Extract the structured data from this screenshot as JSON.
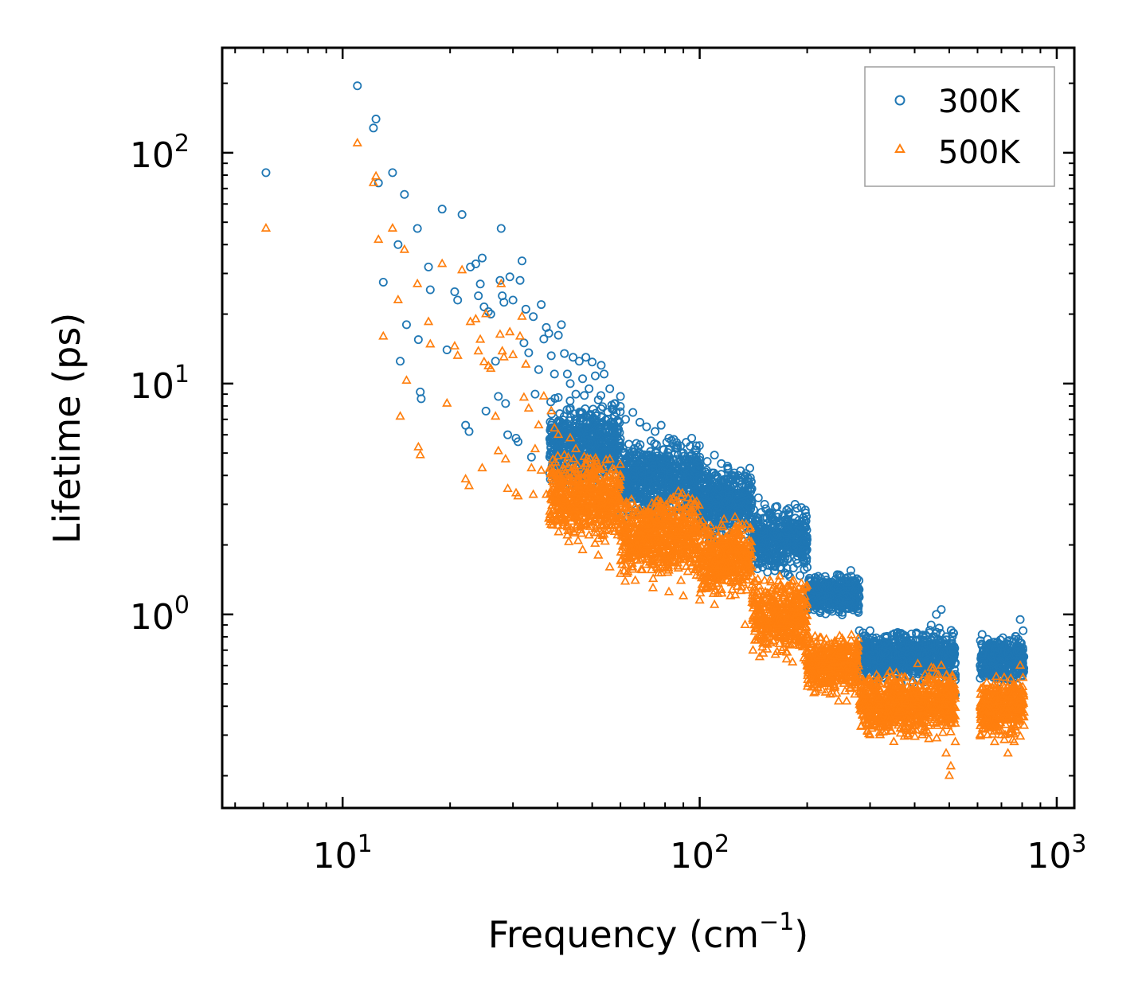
{
  "chart_data": {
    "type": "scatter",
    "xscale": "log",
    "yscale": "log",
    "xlim": [
      4.6,
      1120
    ],
    "ylim": [
      0.145,
      285
    ],
    "xlabel": "Frequency (cm",
    "xlabel_sup": "−1",
    "xlabel_end": ")",
    "ylabel": "Lifetime (ps)",
    "legend_position": "top-right",
    "x_ticks": [
      {
        "value": 10,
        "base": "10",
        "exp": "1"
      },
      {
        "value": 100,
        "base": "10",
        "exp": "2"
      },
      {
        "value": 1000,
        "base": "10",
        "exp": "3"
      }
    ],
    "y_ticks": [
      {
        "value": 1,
        "base": "10",
        "exp": "0"
      },
      {
        "value": 10,
        "base": "10",
        "exp": "1"
      },
      {
        "value": 100,
        "base": "10",
        "exp": "2"
      }
    ],
    "series": [
      {
        "name": "300K",
        "marker": "circle",
        "color": "#1f77b4",
        "points": [
          [
            6.1,
            82
          ],
          [
            11.0,
            195
          ],
          [
            12.2,
            128
          ],
          [
            12.4,
            140
          ],
          [
            12.6,
            74
          ],
          [
            13.0,
            27.5
          ],
          [
            13.8,
            82
          ],
          [
            14.3,
            40
          ],
          [
            14.5,
            12.5
          ],
          [
            14.9,
            66
          ],
          [
            15.1,
            18
          ],
          [
            16.2,
            47
          ],
          [
            16.3,
            15.5
          ],
          [
            16.5,
            9.2
          ],
          [
            16.6,
            8.6
          ],
          [
            17.4,
            32
          ],
          [
            17.6,
            25.5
          ],
          [
            19.0,
            57
          ],
          [
            19.6,
            14
          ],
          [
            20.6,
            25
          ],
          [
            21.0,
            23
          ],
          [
            21.6,
            54
          ],
          [
            22.1,
            6.6
          ],
          [
            22.6,
            6.2
          ],
          [
            22.8,
            32
          ],
          [
            23.6,
            33
          ],
          [
            24.0,
            24
          ],
          [
            24.3,
            27
          ],
          [
            24.6,
            35
          ],
          [
            24.9,
            21.5
          ],
          [
            25.2,
            7.6
          ],
          [
            25.6,
            20.5
          ],
          [
            26.0,
            20
          ],
          [
            26.8,
            12.5
          ],
          [
            27.3,
            8.8
          ],
          [
            27.6,
            28
          ],
          [
            27.8,
            47
          ],
          [
            28.0,
            24
          ],
          [
            28.3,
            22.5
          ],
          [
            28.6,
            8.2
          ],
          [
            29.0,
            6.0
          ],
          [
            29.4,
            29
          ],
          [
            30.0,
            23
          ],
          [
            30.6,
            5.8
          ],
          [
            31.0,
            5.6
          ],
          [
            31.4,
            28
          ],
          [
            31.8,
            34
          ],
          [
            32.2,
            15
          ],
          [
            32.6,
            21
          ],
          [
            33.2,
            13.6
          ],
          [
            33.8,
            4.8
          ],
          [
            34.2,
            19.5
          ],
          [
            34.6,
            9
          ],
          [
            35.4,
            11.5
          ],
          [
            36.0,
            22
          ],
          [
            36.6,
            15.6
          ],
          [
            37.2,
            17.5
          ],
          [
            37.8,
            16.5
          ],
          [
            38.4,
            13.2
          ],
          [
            39.2,
            11
          ],
          [
            40.2,
            16.2
          ],
          [
            41.0,
            18
          ],
          [
            41.8,
            13.5
          ],
          [
            42.6,
            11
          ],
          [
            43.4,
            10
          ],
          [
            44.2,
            13
          ],
          [
            45.0,
            9
          ],
          [
            46.0,
            12.5
          ],
          [
            47.0,
            10.5
          ],
          [
            48.0,
            13
          ],
          [
            49.0,
            9.5
          ],
          [
            50.0,
            12.4
          ],
          [
            51.0,
            10.8
          ],
          [
            52.0,
            8.5
          ],
          [
            53.0,
            12
          ],
          [
            54.0,
            11
          ],
          [
            56.0,
            9.5
          ],
          [
            58.0,
            8.2
          ],
          [
            60.0,
            8.8
          ],
          [
            62.0,
            7.0
          ],
          [
            65.0,
            7.5
          ],
          [
            68.0,
            6.8
          ],
          [
            71.0,
            6.5
          ],
          [
            75.0,
            6.2
          ],
          [
            78.0,
            6.6
          ],
          [
            82.0,
            5.8
          ],
          [
            86.0,
            5.3
          ],
          [
            90.0,
            5.0
          ],
          [
            95.0,
            5.8
          ],
          [
            100.0,
            4.8
          ],
          [
            105.0,
            4.6
          ],
          [
            110.0,
            4.9
          ],
          [
            115.0,
            4.5
          ],
          [
            120.0,
            4.3
          ],
          [
            125.0,
            4.1
          ],
          [
            130.0,
            3.8
          ],
          [
            135.0,
            3.6
          ],
          [
            140.0,
            3.5
          ],
          [
            146.0,
            3.2
          ],
          [
            152.0,
            3.0
          ],
          [
            158.0,
            2.7
          ],
          [
            164.0,
            2.5
          ],
          [
            170.0,
            2.4
          ],
          [
            176.0,
            2.3
          ],
          [
            182.0,
            2.2
          ],
          [
            188.0,
            2.1
          ],
          [
            196.0,
            1.7
          ],
          [
            200.0,
            1.6
          ],
          [
            210.0,
            1.4
          ],
          [
            220.0,
            1.3
          ],
          [
            232.0,
            1.2
          ],
          [
            245.0,
            1.15
          ],
          [
            258.0,
            1.2
          ],
          [
            265.0,
            1.55
          ],
          [
            272.0,
            1.4
          ],
          [
            280.0,
            0.85
          ],
          [
            290.0,
            0.72
          ],
          [
            300.0,
            0.85
          ],
          [
            315.0,
            0.75
          ],
          [
            330.0,
            0.8
          ],
          [
            350.0,
            0.78
          ],
          [
            370.0,
            0.72
          ],
          [
            390.0,
            0.66
          ],
          [
            410.0,
            0.62
          ],
          [
            430.0,
            0.75
          ],
          [
            445.0,
            0.9
          ],
          [
            460.0,
            1.0
          ],
          [
            475.0,
            1.05
          ],
          [
            490.0,
            0.8
          ],
          [
            505.0,
            0.6
          ],
          [
            520.0,
            0.45
          ],
          [
            610.0,
            0.6
          ],
          [
            640.0,
            0.78
          ],
          [
            670.0,
            0.72
          ],
          [
            700.0,
            0.7
          ],
          [
            730.0,
            0.68
          ],
          [
            760.0,
            0.78
          ],
          [
            790.0,
            0.95
          ],
          [
            805.0,
            0.85
          ]
        ],
        "dense_bands": [
          {
            "x_start": 38,
            "x_end": 60,
            "y_low": 3.2,
            "y_high": 9.5
          },
          {
            "x_start": 60,
            "x_end": 100,
            "y_low": 2.4,
            "y_high": 6.2
          },
          {
            "x_start": 100,
            "x_end": 140,
            "y_low": 2.0,
            "y_high": 4.8
          },
          {
            "x_start": 140,
            "x_end": 200,
            "y_low": 1.4,
            "y_high": 3.2
          },
          {
            "x_start": 200,
            "x_end": 280,
            "y_low": 0.95,
            "y_high": 1.55
          },
          {
            "x_start": 280,
            "x_end": 520,
            "y_low": 0.48,
            "y_high": 0.9
          },
          {
            "x_start": 610,
            "x_end": 810,
            "y_low": 0.48,
            "y_high": 0.85
          }
        ]
      },
      {
        "name": "500K",
        "marker": "triangle",
        "color": "#ff7f0e",
        "points": [
          [
            6.1,
            47
          ],
          [
            11.0,
            110
          ],
          [
            12.2,
            74
          ],
          [
            12.4,
            79
          ],
          [
            12.6,
            42
          ],
          [
            13.0,
            16
          ],
          [
            13.8,
            47
          ],
          [
            14.3,
            23
          ],
          [
            14.5,
            7.2
          ],
          [
            14.9,
            38
          ],
          [
            15.1,
            10.3
          ],
          [
            16.2,
            27
          ],
          [
            16.3,
            5.3
          ],
          [
            16.5,
            4.9
          ],
          [
            17.4,
            18.5
          ],
          [
            17.6,
            14.8
          ],
          [
            19.0,
            33
          ],
          [
            19.6,
            8.2
          ],
          [
            20.6,
            14.5
          ],
          [
            21.0,
            13.2
          ],
          [
            21.6,
            31
          ],
          [
            22.1,
            3.85
          ],
          [
            22.6,
            3.6
          ],
          [
            22.8,
            18.5
          ],
          [
            23.6,
            19
          ],
          [
            24.0,
            13.8
          ],
          [
            24.3,
            15.5
          ],
          [
            24.6,
            4.3
          ],
          [
            24.9,
            12.4
          ],
          [
            25.2,
            20
          ],
          [
            25.6,
            11.9
          ],
          [
            26.0,
            11.6
          ],
          [
            26.8,
            7.2
          ],
          [
            27.3,
            5.1
          ],
          [
            27.6,
            16.3
          ],
          [
            27.8,
            27
          ],
          [
            28.0,
            13.8
          ],
          [
            28.3,
            13
          ],
          [
            28.6,
            4.7
          ],
          [
            29.0,
            3.5
          ],
          [
            29.4,
            16.7
          ],
          [
            30.0,
            13.3
          ],
          [
            30.6,
            3.35
          ],
          [
            31.0,
            3.25
          ],
          [
            31.4,
            16
          ],
          [
            31.8,
            19.5
          ],
          [
            32.2,
            8.7
          ],
          [
            32.6,
            12.1
          ],
          [
            33.2,
            7.8
          ],
          [
            33.8,
            4.3
          ],
          [
            34.2,
            3.3
          ],
          [
            34.6,
            5.2
          ],
          [
            35.4,
            6.6
          ],
          [
            36.0,
            4.2
          ],
          [
            36.6,
            8.8
          ],
          [
            37.2,
            3.3
          ],
          [
            37.8,
            2.6
          ],
          [
            38.4,
            7.6
          ],
          [
            39.2,
            6.4
          ],
          [
            40.2,
            6.0
          ],
          [
            41.0,
            2.6
          ],
          [
            41.8,
            4.9
          ],
          [
            42.6,
            2.2
          ],
          [
            43.4,
            5.8
          ],
          [
            44.2,
            2.9
          ],
          [
            45.0,
            5.2
          ],
          [
            46.0,
            2.5
          ],
          [
            47.0,
            1.9
          ],
          [
            48.0,
            4.5
          ],
          [
            49.0,
            2.2
          ],
          [
            50.0,
            4.0
          ],
          [
            52.0,
            1.8
          ],
          [
            54.0,
            3.6
          ],
          [
            56.0,
            1.6
          ],
          [
            58.0,
            3.3
          ],
          [
            60.0,
            1.5
          ],
          [
            63.0,
            3.0
          ],
          [
            66.0,
            1.4
          ],
          [
            70.0,
            2.8
          ],
          [
            74.0,
            1.3
          ],
          [
            78.0,
            2.6
          ],
          [
            82.0,
            1.25
          ],
          [
            86.0,
            2.4
          ],
          [
            90.0,
            1.2
          ],
          [
            95.0,
            2.3
          ],
          [
            100.0,
            1.15
          ],
          [
            105.0,
            2.2
          ],
          [
            110.0,
            1.1
          ],
          [
            116.0,
            2.1
          ],
          [
            122.0,
            1.2
          ],
          [
            128.0,
            1.9
          ],
          [
            134.0,
            0.9
          ],
          [
            140.0,
            1.6
          ],
          [
            146.0,
            0.8
          ],
          [
            152.0,
            1.4
          ],
          [
            158.0,
            0.75
          ],
          [
            164.0,
            1.2
          ],
          [
            170.0,
            0.7
          ],
          [
            176.0,
            1.1
          ],
          [
            182.0,
            0.62
          ],
          [
            190.0,
            0.9
          ],
          [
            200.0,
            0.6
          ],
          [
            210.0,
            0.55
          ],
          [
            220.0,
            0.5
          ],
          [
            232.0,
            0.45
          ],
          [
            245.0,
            0.42
          ],
          [
            258.0,
            0.42
          ],
          [
            265.0,
            0.48
          ],
          [
            272.0,
            0.45
          ],
          [
            290.0,
            0.35
          ],
          [
            300.0,
            0.3
          ],
          [
            320.0,
            0.3
          ],
          [
            340.0,
            0.35
          ],
          [
            360.0,
            0.33
          ],
          [
            380.0,
            0.32
          ],
          [
            400.0,
            0.35
          ],
          [
            420.0,
            0.3
          ],
          [
            445.0,
            0.45
          ],
          [
            460.0,
            0.55
          ],
          [
            475.0,
            0.6
          ],
          [
            490.0,
            0.25
          ],
          [
            500.0,
            0.2
          ],
          [
            505.0,
            0.22
          ],
          [
            520.0,
            0.28
          ],
          [
            610.0,
            0.3
          ],
          [
            640.0,
            0.3
          ],
          [
            670.0,
            0.28
          ],
          [
            700.0,
            0.3
          ],
          [
            730.0,
            0.25
          ],
          [
            760.0,
            0.28
          ],
          [
            790.0,
            0.6
          ],
          [
            805.0,
            0.45
          ]
        ],
        "dense_bands": [
          {
            "x_start": 38,
            "x_end": 60,
            "y_low": 1.9,
            "y_high": 5.5
          },
          {
            "x_start": 60,
            "x_end": 100,
            "y_low": 1.3,
            "y_high": 3.6
          },
          {
            "x_start": 100,
            "x_end": 140,
            "y_low": 1.1,
            "y_high": 2.8
          },
          {
            "x_start": 140,
            "x_end": 200,
            "y_low": 0.6,
            "y_high": 1.6
          },
          {
            "x_start": 200,
            "x_end": 280,
            "y_low": 0.42,
            "y_high": 0.9
          },
          {
            "x_start": 280,
            "x_end": 520,
            "y_low": 0.27,
            "y_high": 0.62
          },
          {
            "x_start": 610,
            "x_end": 810,
            "y_low": 0.27,
            "y_high": 0.58
          }
        ]
      }
    ]
  }
}
